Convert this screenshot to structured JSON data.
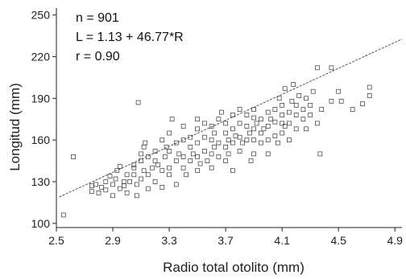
{
  "chart_data": {
    "type": "scatter",
    "xlabel": "Radio total otolito (mm)",
    "ylabel": "Longitud (mm)",
    "xlim": [
      2.5,
      4.95
    ],
    "ylim": [
      97,
      255
    ],
    "xticks": [
      2.5,
      2.9,
      3.3,
      3.7,
      4.1,
      4.5,
      4.9
    ],
    "xtick_labels": [
      "2.5",
      "2.9",
      "3.3",
      "3.7",
      "4.1",
      "4.5",
      "4.9"
    ],
    "yticks": [
      100,
      130,
      160,
      190,
      220,
      250
    ],
    "ytick_labels": [
      "100",
      "130",
      "160",
      "190",
      "220",
      "250"
    ],
    "annotations": [
      "n = 901",
      "L = 1.13 + 46.77*R",
      "r = 0.90"
    ],
    "fit": {
      "intercept": 1.13,
      "slope": 46.77,
      "x_range": [
        2.52,
        4.95
      ]
    },
    "n": 901,
    "marker": "open-square",
    "grid": false,
    "points": [
      [
        2.55,
        106
      ],
      [
        2.62,
        148
      ],
      [
        2.75,
        127
      ],
      [
        2.75,
        123
      ],
      [
        2.78,
        128
      ],
      [
        2.8,
        122
      ],
      [
        2.82,
        126
      ],
      [
        2.85,
        124
      ],
      [
        2.85,
        130
      ],
      [
        2.88,
        134
      ],
      [
        2.9,
        128
      ],
      [
        2.9,
        120
      ],
      [
        2.92,
        132
      ],
      [
        2.93,
        138
      ],
      [
        2.95,
        125
      ],
      [
        2.95,
        141
      ],
      [
        2.98,
        127
      ],
      [
        2.98,
        130
      ],
      [
        3.0,
        135
      ],
      [
        3.0,
        122
      ],
      [
        3.02,
        130
      ],
      [
        3.05,
        135
      ],
      [
        3.05,
        140
      ],
      [
        3.05,
        142
      ],
      [
        3.07,
        128
      ],
      [
        3.07,
        120
      ],
      [
        3.08,
        187
      ],
      [
        3.1,
        145
      ],
      [
        3.1,
        150
      ],
      [
        3.1,
        132
      ],
      [
        3.12,
        138
      ],
      [
        3.12,
        155
      ],
      [
        3.13,
        158
      ],
      [
        3.15,
        125
      ],
      [
        3.15,
        135
      ],
      [
        3.15,
        148
      ],
      [
        3.18,
        140
      ],
      [
        3.2,
        130
      ],
      [
        3.2,
        145
      ],
      [
        3.2,
        152
      ],
      [
        3.22,
        142
      ],
      [
        3.25,
        126
      ],
      [
        3.25,
        138
      ],
      [
        3.25,
        160
      ],
      [
        3.27,
        148
      ],
      [
        3.28,
        155
      ],
      [
        3.3,
        135
      ],
      [
        3.3,
        140
      ],
      [
        3.3,
        152
      ],
      [
        3.3,
        165
      ],
      [
        3.32,
        175
      ],
      [
        3.35,
        128
      ],
      [
        3.35,
        145
      ],
      [
        3.35,
        158
      ],
      [
        3.37,
        150
      ],
      [
        3.4,
        140
      ],
      [
        3.4,
        148
      ],
      [
        3.4,
        160
      ],
      [
        3.4,
        170
      ],
      [
        3.42,
        135
      ],
      [
        3.45,
        145
      ],
      [
        3.45,
        155
      ],
      [
        3.45,
        162
      ],
      [
        3.47,
        150
      ],
      [
        3.5,
        138
      ],
      [
        3.5,
        148
      ],
      [
        3.5,
        158
      ],
      [
        3.5,
        168
      ],
      [
        3.5,
        175
      ],
      [
        3.52,
        143
      ],
      [
        3.55,
        152
      ],
      [
        3.55,
        162
      ],
      [
        3.55,
        172
      ],
      [
        3.57,
        145
      ],
      [
        3.6,
        140
      ],
      [
        3.6,
        150
      ],
      [
        3.6,
        160
      ],
      [
        3.6,
        170
      ],
      [
        3.62,
        155
      ],
      [
        3.62,
        165
      ],
      [
        3.65,
        148
      ],
      [
        3.65,
        158
      ],
      [
        3.65,
        175
      ],
      [
        3.67,
        180
      ],
      [
        3.7,
        145
      ],
      [
        3.7,
        155
      ],
      [
        3.7,
        165
      ],
      [
        3.7,
        172
      ],
      [
        3.72,
        160
      ],
      [
        3.72,
        150
      ],
      [
        3.75,
        138
      ],
      [
        3.75,
        158
      ],
      [
        3.75,
        168
      ],
      [
        3.75,
        178
      ],
      [
        3.77,
        163
      ],
      [
        3.8,
        152
      ],
      [
        3.8,
        162
      ],
      [
        3.8,
        172
      ],
      [
        3.8,
        182
      ],
      [
        3.82,
        158
      ],
      [
        3.85,
        160
      ],
      [
        3.85,
        170
      ],
      [
        3.85,
        178
      ],
      [
        3.87,
        165
      ],
      [
        3.88,
        145
      ],
      [
        3.9,
        150
      ],
      [
        3.9,
        160
      ],
      [
        3.9,
        168
      ],
      [
        3.9,
        176
      ],
      [
        3.9,
        182
      ],
      [
        3.92,
        172
      ],
      [
        3.95,
        158
      ],
      [
        3.95,
        165
      ],
      [
        3.95,
        175
      ],
      [
        3.97,
        168
      ],
      [
        4.0,
        150
      ],
      [
        4.0,
        160
      ],
      [
        4.0,
        170
      ],
      [
        4.0,
        180
      ],
      [
        4.02,
        175
      ],
      [
        4.05,
        163
      ],
      [
        4.05,
        173
      ],
      [
        4.05,
        182
      ],
      [
        4.07,
        158
      ],
      [
        4.08,
        190
      ],
      [
        4.1,
        165
      ],
      [
        4.1,
        172
      ],
      [
        4.1,
        178
      ],
      [
        4.1,
        185
      ],
      [
        4.12,
        197
      ],
      [
        4.12,
        170
      ],
      [
        4.15,
        160
      ],
      [
        4.15,
        172
      ],
      [
        4.15,
        180
      ],
      [
        4.17,
        188
      ],
      [
        4.18,
        200
      ],
      [
        4.2,
        168
      ],
      [
        4.2,
        178
      ],
      [
        4.2,
        185
      ],
      [
        4.22,
        192
      ],
      [
        4.25,
        175
      ],
      [
        4.25,
        182
      ],
      [
        4.27,
        168
      ],
      [
        4.27,
        190
      ],
      [
        4.3,
        178
      ],
      [
        4.3,
        185
      ],
      [
        4.32,
        195
      ],
      [
        4.35,
        212
      ],
      [
        4.35,
        172
      ],
      [
        4.37,
        150
      ],
      [
        4.38,
        182
      ],
      [
        4.45,
        212
      ],
      [
        4.45,
        188
      ],
      [
        4.5,
        195
      ],
      [
        4.52,
        188
      ],
      [
        4.6,
        182
      ],
      [
        4.67,
        186
      ],
      [
        4.72,
        192
      ],
      [
        4.72,
        198
      ]
    ]
  }
}
